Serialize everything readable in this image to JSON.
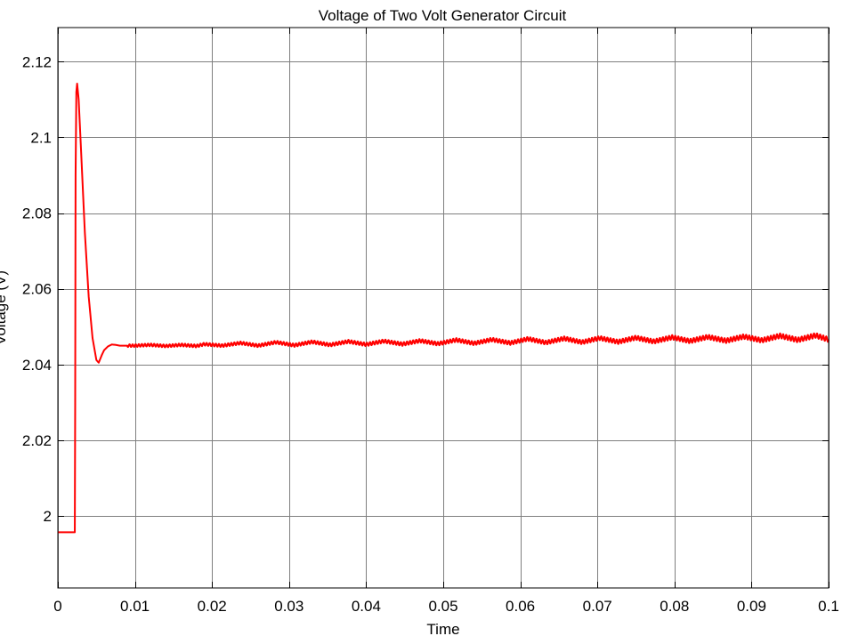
{
  "chart_data": {
    "type": "line",
    "title": "Voltage of Two Volt Generator Circuit",
    "xlabel": "Time",
    "ylabel": "Voltage (V)",
    "xlim": [
      0,
      0.1
    ],
    "ylim": [
      1.981,
      2.129
    ],
    "grid": true,
    "legend": "none",
    "x_ticks": [
      0,
      0.01,
      0.02,
      0.03,
      0.04,
      0.05,
      0.06,
      0.07,
      0.08,
      0.09,
      0.1
    ],
    "x_tick_labels": [
      "0",
      "0.01",
      "0.02",
      "0.03",
      "0.04",
      "0.05",
      "0.06",
      "0.07",
      "0.08",
      "0.09",
      "0.1"
    ],
    "y_ticks": [
      2.0,
      2.02,
      2.04,
      2.06,
      2.08,
      2.1,
      2.12
    ],
    "y_tick_labels": [
      "2",
      "2.02",
      "2.04",
      "2.06",
      "2.08",
      "2.1",
      "2.12"
    ],
    "series": [
      {
        "color": "#ff0000",
        "x": [
          0,
          0.0022,
          0.00225,
          0.0023,
          0.0024,
          0.0025,
          0.0027,
          0.003,
          0.0035,
          0.004,
          0.0045,
          0.005,
          0.0053,
          0.0057,
          0.006,
          0.0065,
          0.007,
          0.0075,
          0.008,
          0.009,
          0.01,
          0.012,
          0.014,
          0.016,
          0.018,
          0.019,
          0.0213,
          0.0237,
          0.026,
          0.0283,
          0.0307,
          0.033,
          0.0353,
          0.0377,
          0.04,
          0.0423,
          0.0447,
          0.047,
          0.0493,
          0.0517,
          0.054,
          0.0563,
          0.0587,
          0.061,
          0.0633,
          0.0657,
          0.068,
          0.0703,
          0.0727,
          0.075,
          0.0773,
          0.0797,
          0.082,
          0.0843,
          0.0867,
          0.089,
          0.0913,
          0.0937,
          0.096,
          0.0983,
          0.1
        ],
        "y": [
          1.9957,
          1.9957,
          2.03,
          2.09,
          2.112,
          2.1142,
          2.11,
          2.097,
          2.075,
          2.058,
          2.047,
          2.0412,
          2.0405,
          2.0425,
          2.0438,
          2.0448,
          2.0453,
          2.0452,
          2.045,
          2.045,
          2.045,
          2.0452,
          2.0449,
          2.0452,
          2.0449,
          2.0454,
          2.045,
          2.0457,
          2.045,
          2.0459,
          2.0451,
          2.046,
          2.0452,
          2.0461,
          2.0453,
          2.0462,
          2.0454,
          2.0463,
          2.0455,
          2.0465,
          2.0456,
          2.0466,
          2.0457,
          2.0468,
          2.0458,
          2.0469,
          2.0459,
          2.047,
          2.046,
          2.0471,
          2.0461,
          2.0472,
          2.0462,
          2.0473,
          2.0463,
          2.0474,
          2.0464,
          2.0476,
          2.0465,
          2.0477,
          2.0466
        ]
      }
    ]
  }
}
